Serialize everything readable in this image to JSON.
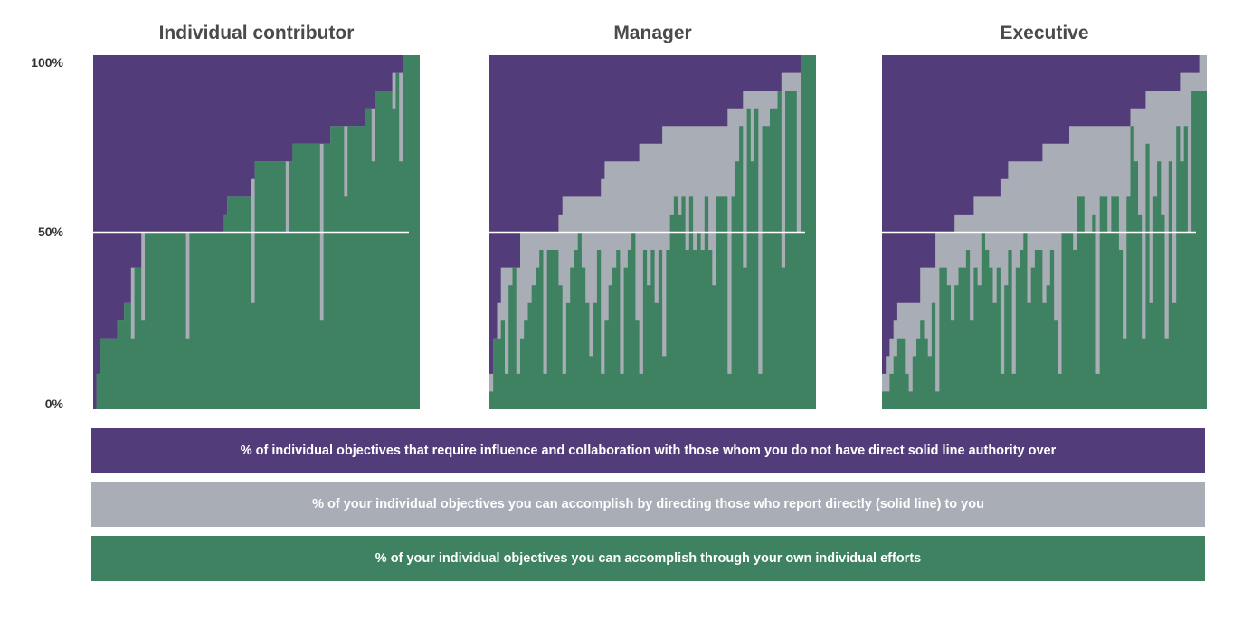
{
  "chart_data": {
    "type": "area",
    "y_ticks": [
      "100%",
      "50%",
      "0%"
    ],
    "ylim": [
      0,
      100
    ],
    "reference_line": 50,
    "colors": {
      "influence": "#523d7a",
      "direct_reports": "#a9adb5",
      "individual": "#3e8262",
      "reference_line": "#ffffff"
    },
    "legend": [
      {
        "key": "influence",
        "label": "% of individual objectives that require influence and collaboration with those whom you do not have direct solid line authority over"
      },
      {
        "key": "direct_reports",
        "label": "% of your individual objectives you can accomplish by directing those who report directly (solid line) to you"
      },
      {
        "key": "individual",
        "label": "% of your individual objectives you can accomplish through your own individual efforts"
      }
    ],
    "panels": [
      {
        "title": "Individual contributor",
        "top": [
          0,
          10,
          20,
          20,
          20,
          20,
          20,
          25,
          25,
          30,
          30,
          40,
          40,
          40,
          50,
          50,
          50,
          50,
          50,
          50,
          50,
          50,
          50,
          50,
          50,
          50,
          50,
          50,
          50,
          50,
          50,
          50,
          50,
          50,
          50,
          50,
          50,
          50,
          55,
          60,
          60,
          60,
          60,
          60,
          60,
          60,
          65,
          70,
          70,
          70,
          70,
          70,
          70,
          70,
          70,
          70,
          70,
          70,
          75,
          75,
          75,
          75,
          75,
          75,
          75,
          75,
          75,
          75,
          75,
          80,
          80,
          80,
          80,
          80,
          80,
          80,
          80,
          80,
          80,
          85,
          85,
          85,
          90,
          90,
          90,
          90,
          90,
          95,
          95,
          95,
          100,
          100,
          100,
          100,
          100,
          100
        ],
        "bottom": [
          0,
          10,
          20,
          20,
          20,
          20,
          20,
          25,
          25,
          30,
          30,
          20,
          40,
          40,
          25,
          50,
          50,
          50,
          50,
          50,
          50,
          50,
          50,
          50,
          50,
          50,
          50,
          20,
          50,
          50,
          50,
          50,
          50,
          50,
          50,
          50,
          50,
          50,
          55,
          60,
          60,
          60,
          60,
          60,
          60,
          60,
          30,
          70,
          70,
          70,
          70,
          70,
          70,
          70,
          70,
          70,
          50,
          70,
          75,
          75,
          75,
          75,
          75,
          75,
          75,
          75,
          25,
          75,
          75,
          80,
          80,
          80,
          80,
          60,
          80,
          80,
          80,
          80,
          80,
          85,
          85,
          70,
          90,
          90,
          90,
          90,
          90,
          85,
          95,
          70,
          100,
          100,
          100,
          100,
          100,
          100
        ]
      },
      {
        "title": "Manager",
        "top": [
          10,
          20,
          30,
          40,
          40,
          40,
          40,
          40,
          50,
          50,
          50,
          50,
          50,
          50,
          50,
          50,
          50,
          50,
          55,
          60,
          60,
          60,
          60,
          60,
          60,
          60,
          60,
          60,
          60,
          65,
          70,
          70,
          70,
          70,
          70,
          70,
          70,
          70,
          70,
          75,
          75,
          75,
          75,
          75,
          75,
          80,
          80,
          80,
          80,
          80,
          80,
          80,
          80,
          80,
          80,
          80,
          80,
          80,
          80,
          80,
          80,
          80,
          85,
          85,
          85,
          85,
          90,
          90,
          90,
          90,
          90,
          90,
          90,
          90,
          90,
          90,
          95,
          95,
          95,
          95,
          95,
          100,
          100,
          100,
          100,
          100
        ],
        "bottom": [
          5,
          20,
          20,
          25,
          10,
          35,
          40,
          10,
          20,
          25,
          30,
          35,
          40,
          45,
          10,
          45,
          45,
          45,
          35,
          10,
          30,
          40,
          45,
          50,
          40,
          30,
          15,
          30,
          45,
          10,
          25,
          35,
          40,
          45,
          10,
          40,
          45,
          50,
          25,
          10,
          45,
          35,
          45,
          30,
          45,
          15,
          45,
          55,
          60,
          55,
          60,
          45,
          60,
          45,
          50,
          45,
          60,
          45,
          35,
          60,
          60,
          60,
          10,
          60,
          70,
          80,
          40,
          85,
          70,
          85,
          10,
          80,
          80,
          85,
          85,
          90,
          40,
          90,
          90,
          90,
          50,
          100,
          100,
          100,
          100,
          100
        ]
      },
      {
        "title": "Executive",
        "top": [
          10,
          15,
          20,
          25,
          30,
          30,
          30,
          30,
          30,
          30,
          40,
          40,
          40,
          40,
          50,
          50,
          50,
          50,
          50,
          55,
          55,
          55,
          55,
          55,
          60,
          60,
          60,
          60,
          60,
          60,
          60,
          65,
          65,
          70,
          70,
          70,
          70,
          70,
          70,
          70,
          70,
          70,
          75,
          75,
          75,
          75,
          75,
          75,
          75,
          80,
          80,
          80,
          80,
          80,
          80,
          80,
          80,
          80,
          80,
          80,
          80,
          80,
          80,
          80,
          80,
          85,
          85,
          85,
          85,
          90,
          90,
          90,
          90,
          90,
          90,
          90,
          90,
          90,
          95,
          95,
          95,
          95,
          95,
          100,
          100,
          100
        ],
        "bottom": [
          5,
          5,
          10,
          15,
          20,
          20,
          10,
          5,
          15,
          20,
          25,
          20,
          15,
          30,
          5,
          40,
          40,
          35,
          25,
          35,
          40,
          40,
          45,
          25,
          40,
          35,
          50,
          45,
          40,
          30,
          40,
          10,
          35,
          45,
          10,
          40,
          45,
          50,
          30,
          40,
          45,
          45,
          30,
          35,
          45,
          25,
          10,
          50,
          50,
          50,
          45,
          60,
          60,
          50,
          50,
          55,
          10,
          60,
          60,
          50,
          60,
          60,
          45,
          20,
          60,
          80,
          70,
          55,
          20,
          75,
          30,
          60,
          70,
          55,
          20,
          70,
          30,
          80,
          70,
          80,
          50,
          90,
          90,
          90,
          90,
          90
        ]
      }
    ]
  }
}
